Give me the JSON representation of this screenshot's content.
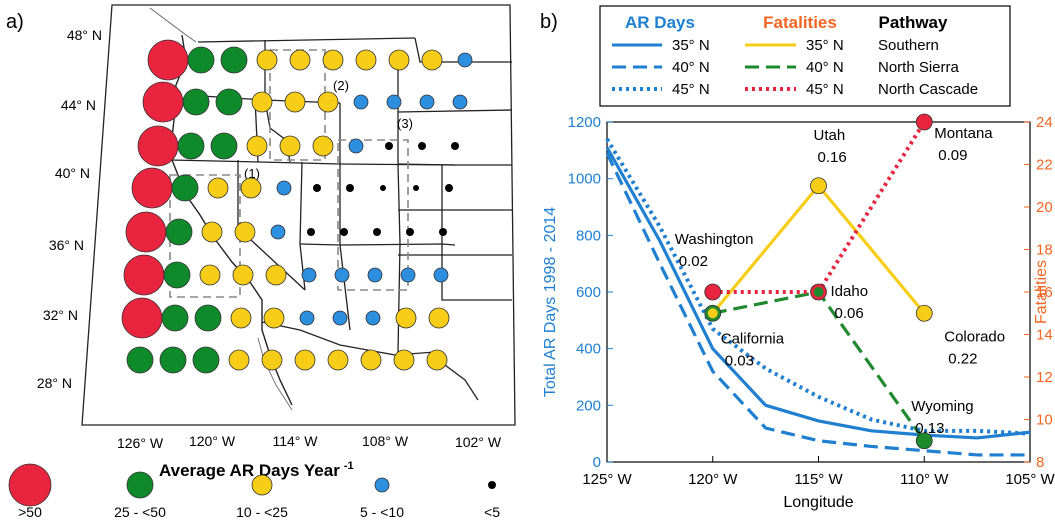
{
  "panel_a": {
    "label": "a)",
    "lat_labels": [
      "48° N",
      "44° N",
      "40° N",
      "36° N",
      "32° N",
      "28° N"
    ],
    "lon_labels": [
      "126° W",
      "120° W",
      "114° W",
      "108° W",
      "102° W"
    ],
    "region_labels": [
      "(1)",
      "(2)",
      "(3)"
    ],
    "legend": {
      "title": "Average AR Days Year",
      "title_sup": "-1",
      "classes": [
        {
          "label": ">50",
          "color": "#e8243f"
        },
        {
          "label": "25 - <50",
          "color": "#0f8a2b"
        },
        {
          "label": "10 - <25",
          "color": "#f7cd17"
        },
        {
          "label": "5 - <10",
          "color": "#2d8fe0"
        },
        {
          "label": "<5",
          "color": "#000000"
        }
      ]
    }
  },
  "panel_b": {
    "label": "b)",
    "legend": {
      "headers": [
        {
          "text": "AR Days",
          "color": "#1f7fd0"
        },
        {
          "text": "Fatalities",
          "color": "#f26522"
        },
        {
          "text": "Pathway",
          "color": "#000000"
        }
      ],
      "rows": [
        {
          "ar": "35° N",
          "fat": "35° N",
          "path": "Southern"
        },
        {
          "ar": "40° N",
          "fat": "40° N",
          "path": "North Sierra"
        },
        {
          "ar": "45° N",
          "fat": "45° N",
          "path": "North Cascade"
        }
      ]
    },
    "colors": {
      "ar": "#1f7fd0",
      "southern": "#f7cd17",
      "north_sierra": "#1e8a2e",
      "north_cascade": "#e8243f"
    }
  },
  "chart_data": {
    "type": "line",
    "xlabel": "Longitude",
    "ylabel": "Total AR Days 1998 - 2014",
    "y2label": "Fatalities",
    "xlim": [
      -125,
      -105
    ],
    "ylim": [
      0,
      1200
    ],
    "y2lim": [
      8,
      24
    ],
    "x_ticks": [
      -125,
      -120,
      -115,
      -110,
      -105
    ],
    "x_tick_labels": [
      "125° W",
      "120° W",
      "115° W",
      "110° W",
      "105° W"
    ],
    "y_ticks": [
      0,
      200,
      400,
      600,
      800,
      1000,
      1200
    ],
    "y2_ticks": [
      8,
      10,
      12,
      14,
      16,
      18,
      20,
      22,
      24
    ],
    "ar_series": [
      {
        "name": "35° N",
        "style": "solid",
        "x": [
          -125,
          -122.5,
          -120,
          -117.5,
          -115,
          -112.5,
          -110,
          -107.5,
          -105
        ],
        "y": [
          1110,
          780,
          400,
          200,
          145,
          110,
          95,
          85,
          105
        ]
      },
      {
        "name": "40° N",
        "style": "dashed",
        "x": [
          -125,
          -122.5,
          -120,
          -117.5,
          -115,
          -112.5,
          -110,
          -107.5,
          -105
        ],
        "y": [
          1090,
          700,
          320,
          120,
          75,
          55,
          40,
          25,
          25
        ]
      },
      {
        "name": "45° N",
        "style": "dotted",
        "x": [
          -125,
          -122.5,
          -120,
          -117.5,
          -115,
          -112.5,
          -110,
          -107.5,
          -105
        ],
        "y": [
          1140,
          830,
          470,
          330,
          230,
          150,
          110,
          110,
          100
        ]
      }
    ],
    "fatality_series": [
      {
        "name": "Southern",
        "lat": "35° N",
        "style": "solid",
        "color": "#f7cd17",
        "x": [
          -120,
          -115,
          -110
        ],
        "y": [
          15,
          21,
          15
        ]
      },
      {
        "name": "North Sierra",
        "lat": "40° N",
        "style": "dashed",
        "color": "#1e8a2e",
        "x": [
          -120,
          -115,
          -110
        ],
        "y": [
          15,
          16,
          9
        ]
      },
      {
        "name": "North Cascade",
        "lat": "45° N",
        "style": "dotted",
        "color": "#e8243f",
        "x": [
          -120,
          -115,
          -110
        ],
        "y": [
          16,
          16,
          24
        ]
      }
    ],
    "states": [
      {
        "name": "Washington",
        "value": "0.02",
        "x": -120,
        "y": 16,
        "color": "#e8243f"
      },
      {
        "name": "California",
        "value": "0.03",
        "x": -120,
        "y": 15,
        "color": "#f7cd17",
        "ring": "#1e8a2e"
      },
      {
        "name": "Idaho",
        "value": "0.06",
        "x": -115,
        "y": 16,
        "color": "#1e8a2e",
        "ring": "#e8243f"
      },
      {
        "name": "Utah",
        "value": "0.16",
        "x": -115,
        "y": 21,
        "color": "#f7cd17"
      },
      {
        "name": "Montana",
        "value": "0.09",
        "x": -110,
        "y": 24,
        "color": "#e8243f"
      },
      {
        "name": "Colorado",
        "value": "0.22",
        "x": -110,
        "y": 15,
        "color": "#f7cd17"
      },
      {
        "name": "Wyoming",
        "value": "0.13",
        "x": -110,
        "y": 9,
        "color": "#1e8a2e"
      }
    ]
  }
}
